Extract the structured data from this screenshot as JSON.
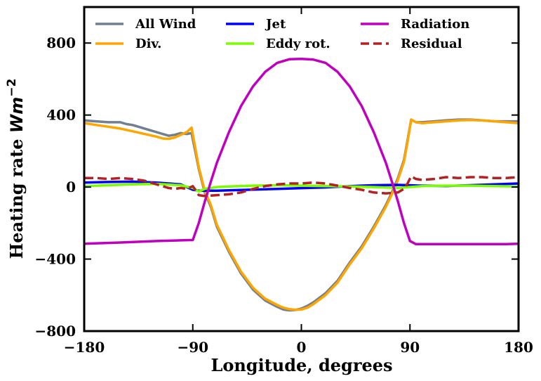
{
  "chart_data": {
    "type": "line",
    "title": "",
    "xlabel": "Longitude, degrees",
    "ylabel_text": "Heating rate ",
    "ylabel_unit": "Wm",
    "ylabel_exp": "−2",
    "xlim": [
      -180,
      180
    ],
    "ylim": [
      -800,
      1000
    ],
    "xticks": [
      -180,
      -90,
      0,
      90,
      180
    ],
    "xtick_labels": [
      "−180",
      "−90",
      "0",
      "90",
      "180"
    ],
    "yticks": [
      -800,
      -400,
      0,
      400,
      800
    ],
    "ytick_labels": [
      "−800",
      "−400",
      "0",
      "400",
      "800"
    ],
    "legend_position": "top",
    "series": [
      {
        "name": "All Wind",
        "color": "#708090",
        "dash": false,
        "x": [
          -180,
          -170,
          -160,
          -150,
          -145,
          -140,
          -135,
          -130,
          -125,
          -120,
          -115,
          -110,
          -105,
          -100,
          -95,
          -91,
          -88,
          -85,
          -82,
          -80,
          -75,
          -70,
          -60,
          -50,
          -40,
          -30,
          -20,
          -15,
          -10,
          -5,
          0,
          5,
          10,
          20,
          30,
          40,
          50,
          60,
          70,
          75,
          80,
          85,
          88,
          91,
          95,
          100,
          110,
          120,
          130,
          140,
          150,
          160,
          170,
          180
        ],
        "values": [
          370,
          365,
          360,
          360,
          350,
          345,
          335,
          325,
          315,
          305,
          295,
          285,
          290,
          300,
          295,
          300,
          200,
          100,
          20,
          -30,
          -110,
          -220,
          -360,
          -480,
          -570,
          -630,
          -665,
          -680,
          -685,
          -683,
          -675,
          -660,
          -640,
          -590,
          -520,
          -420,
          -330,
          -220,
          -100,
          -30,
          50,
          150,
          260,
          375,
          360,
          360,
          365,
          370,
          375,
          375,
          370,
          365,
          365,
          365
        ]
      },
      {
        "name": "Div.",
        "color": "#FFA500",
        "dash": false,
        "x": [
          -180,
          -170,
          -160,
          -150,
          -140,
          -130,
          -120,
          -115,
          -110,
          -105,
          -100,
          -95,
          -91,
          -88,
          -85,
          -82,
          -80,
          -75,
          -70,
          -60,
          -50,
          -40,
          -30,
          -20,
          -15,
          -10,
          -5,
          0,
          5,
          10,
          20,
          30,
          40,
          50,
          60,
          70,
          75,
          80,
          85,
          88,
          91,
          95,
          100,
          110,
          120,
          130,
          140,
          150,
          160,
          170,
          180
        ],
        "values": [
          355,
          345,
          335,
          325,
          310,
          295,
          280,
          270,
          268,
          275,
          290,
          305,
          330,
          220,
          110,
          30,
          -20,
          -100,
          -210,
          -350,
          -470,
          -560,
          -620,
          -655,
          -670,
          -678,
          -682,
          -680,
          -670,
          -650,
          -600,
          -530,
          -430,
          -340,
          -230,
          -110,
          -40,
          40,
          140,
          250,
          375,
          360,
          355,
          360,
          365,
          370,
          372,
          370,
          365,
          360,
          355
        ]
      },
      {
        "name": "Jet",
        "color": "#0000FF",
        "dash": false,
        "x": [
          -180,
          -160,
          -140,
          -120,
          -100,
          -90,
          -85,
          -80,
          -70,
          -60,
          -40,
          -20,
          0,
          20,
          40,
          60,
          80,
          100,
          120,
          140,
          160,
          180
        ],
        "values": [
          25,
          28,
          30,
          25,
          15,
          -15,
          -20,
          -20,
          -20,
          -18,
          -14,
          -10,
          -6,
          -2,
          5,
          10,
          12,
          8,
          6,
          10,
          15,
          20
        ]
      },
      {
        "name": "Eddy rot.",
        "color": "#7CFC00",
        "dash": false,
        "x": [
          -180,
          -160,
          -140,
          -120,
          -100,
          -90,
          -85,
          -80,
          -70,
          -60,
          -40,
          -20,
          0,
          20,
          40,
          60,
          80,
          100,
          120,
          140,
          160,
          180
        ],
        "values": [
          5,
          10,
          15,
          18,
          10,
          -5,
          -25,
          -10,
          0,
          3,
          8,
          10,
          8,
          5,
          3,
          0,
          -5,
          5,
          8,
          8,
          5,
          3
        ]
      },
      {
        "name": "Radiation",
        "color": "#BF00BF",
        "dash": false,
        "x": [
          -180,
          -150,
          -120,
          -100,
          -90,
          -85,
          -80,
          -75,
          -70,
          -60,
          -50,
          -40,
          -30,
          -20,
          -10,
          0,
          10,
          20,
          30,
          40,
          50,
          60,
          70,
          75,
          80,
          85,
          90,
          95,
          110,
          140,
          170,
          180
        ],
        "values": [
          -315,
          -308,
          -300,
          -296,
          -294,
          -200,
          -80,
          30,
          135,
          305,
          450,
          560,
          640,
          690,
          710,
          712,
          708,
          690,
          640,
          560,
          450,
          305,
          135,
          30,
          -80,
          -200,
          -300,
          -317,
          -317,
          -317,
          -317,
          -315
        ]
      },
      {
        "name": "Residual",
        "color": "#B22222",
        "dash": true,
        "x": [
          -180,
          -170,
          -160,
          -150,
          -140,
          -130,
          -120,
          -115,
          -110,
          -105,
          -100,
          -95,
          -90,
          -85,
          -80,
          -70,
          -60,
          -50,
          -40,
          -30,
          -20,
          -10,
          0,
          10,
          20,
          30,
          40,
          50,
          60,
          70,
          80,
          85,
          88,
          91,
          95,
          100,
          110,
          120,
          130,
          140,
          150,
          160,
          170,
          180
        ],
        "values": [
          50,
          50,
          45,
          50,
          45,
          35,
          15,
          5,
          -5,
          -10,
          -5,
          -10,
          5,
          -45,
          -50,
          -45,
          -40,
          -30,
          -10,
          5,
          15,
          20,
          20,
          25,
          20,
          8,
          -5,
          -15,
          -30,
          -35,
          -30,
          -10,
          20,
          60,
          45,
          40,
          45,
          55,
          50,
          55,
          55,
          50,
          50,
          55
        ]
      }
    ]
  }
}
